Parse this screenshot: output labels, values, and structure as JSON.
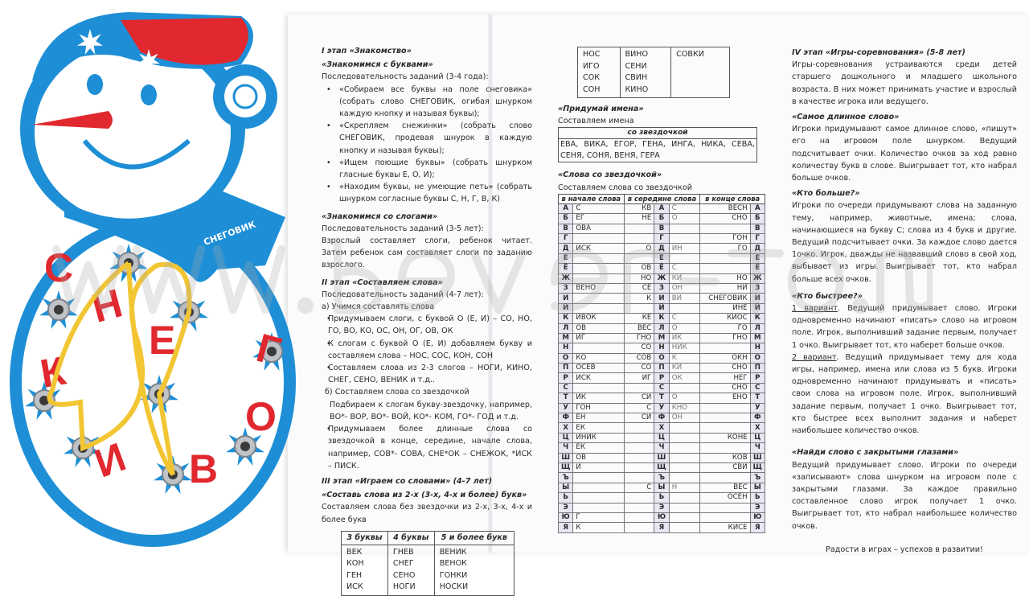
{
  "toy": {
    "scarf_label": "СНЕГОВИК",
    "letters": [
      "С",
      "Н",
      "Е",
      "Г",
      "К",
      "О",
      "И",
      "В"
    ],
    "colors": {
      "blue": "#1e8fd6",
      "red": "#e0282e",
      "lace": "#f2c633"
    }
  },
  "watermark": "www.bever-toy.ru",
  "left": {
    "stage1": "I этап «Знакомство»",
    "letters_title": "«Знакомимся с буквами»",
    "letters_seq": "Последовательность заданий (3-4 года):",
    "letters_items": [
      "«Собираем все буквы на поле снеговика» (собрать слово СНЕГОВИК, огибая шнурком каждую кнопку и называя буквы);",
      "«Скрепляем снежинки» (собрать слово СНЕГОВИК, продевая шнурок в каждую кнопку и называя буквы);",
      "«Ищем поющие буквы» (собрать шнурком гласные буквы Е, О, И);",
      "«Находим буквы, не умеющие петь» (собрать шнурком согласные буквы С, Н, Г, В, К)"
    ],
    "syll_title": "«Знакомимся со слогами»",
    "syll_seq": "Последовательность заданий (3-5 лет):",
    "syll_text": "Взрослый составляет слоги, ребенок читает. Затем ребенок сам составляет слоги по заданию взрослого.",
    "stage2": "II этап «Составляем слова»",
    "stage2_seq": "Последовательность заданий (4-7 лет):",
    "a": "а)  Учимся составлять слова",
    "a_items": [
      "Придумываем слоги, с буквой О (Е, И) – СО, НО, ГО, ВО, КО, ОС, ОН, ОГ, ОВ, ОК",
      "К слогам с буквой О (Е, И)  добавляем букву и составляем слова – НОС, СОС, КОН, СОН",
      "Составляем слова из 2-3 слогов – НОГИ, КИНО, СНЕГ, СЕНО, ВЕНИК и т.д.."
    ],
    "b": "б)  Составляем слова со звездочкой",
    "b_text": "Подбираем к слогам букву-звездочку, например, ВО*- ВОР, ВО*- ВОЙ, КО*- КОМ, ГО*- ГОД и т.д.",
    "b_item": "Придумываем более длинные слова со звездочкой в конце, середине, начале слова, например, СОВ*- СОВА, СНЕ*ОК – СНЕЖОК, *ИСК – ПИСК.",
    "stage3": "III этап «Играем со словами» (4-7 лет)",
    "compose_title": "«Составь слова из 2-х (3-х, 4-х и более) букв»",
    "compose_text": "Составляем слова без звездочки из 2-х, 3-х, 4-х и более букв",
    "words_table": {
      "headers": [
        "3 буквы",
        "4 буквы",
        "5 и более букв"
      ],
      "cols": [
        [
          "ВЕК",
          "КОН",
          "ГЕН",
          "ИСК"
        ],
        [
          "ГНЕВ",
          "СНЕГ",
          "СЕНО",
          "НОГИ"
        ],
        [
          "ВЕНИК",
          "ВЕНОК",
          "ГОНКИ",
          "НОСКИ"
        ]
      ]
    }
  },
  "middle": {
    "words_table_cont": [
      [
        "НОС",
        "ИГО",
        "СОК",
        "СОН"
      ],
      [
        "ВИНО",
        "СЕНИ",
        "СВИН",
        "КИНО"
      ],
      [
        "СОВКИ"
      ]
    ],
    "names_title": "«Придумай имена»",
    "names_text": "Составляем имена",
    "names_header": "со звездочкой",
    "names_list": "ЕВА, ВИКА, ЕГОР, ГЕНА, ИНГА, НИКА, СЕВА, СЕНЯ, СОНЯ, ВЕНЯ, ГЕРА",
    "star_title": "«Слова со звездочкой»",
    "star_text": "Составляем слова со звездочкой",
    "alpha_headers": [
      "в начале слова",
      "в середине слова",
      "в конце слова"
    ],
    "alpha_rows": [
      [
        "А",
        "С",
        "КВ",
        "С",
        "ВЕСН"
      ],
      [
        "Б",
        "ЕГ",
        "НЕ",
        "О",
        "СНО"
      ],
      [
        "В",
        "ОВА",
        "",
        "",
        ""
      ],
      [
        "Г",
        "",
        "",
        "",
        "ГОН"
      ],
      [
        "Д",
        "ИСК",
        "О",
        "ИН",
        "ГО"
      ],
      [
        "Е",
        "",
        "",
        "",
        ""
      ],
      [
        "Ё",
        "",
        "ОВ",
        "С",
        ""
      ],
      [
        "Ж",
        "",
        "НО",
        "КИ",
        "НО"
      ],
      [
        "З",
        "ВЕНО",
        "СЕ",
        "ОН",
        "НИ"
      ],
      [
        "И",
        "",
        "К",
        "ВИ",
        "СНЕГОВИК"
      ],
      [
        "Й",
        "",
        "",
        "",
        "ИНЕ"
      ],
      [
        "К",
        "ИВОК",
        "КЕ",
        "С",
        "КИОС"
      ],
      [
        "Л",
        "ОВ",
        "ВЕС",
        "О",
        "ГО"
      ],
      [
        "М",
        "ИГ",
        "ГНО",
        "ИК",
        "ГНО"
      ],
      [
        "Н",
        "",
        "СО",
        "НИК",
        ""
      ],
      [
        "О",
        "КО",
        "СОВ",
        "К",
        "ОКН"
      ],
      [
        "П",
        "ОСЕВ",
        "СО",
        "КИ",
        "СНО"
      ],
      [
        "Р",
        "ИСК",
        "ИГ",
        "ОК",
        "НЕГ"
      ],
      [
        "С",
        "",
        "",
        "",
        "СНО"
      ],
      [
        "Т",
        "ИК",
        "СИ",
        "О",
        "ЕНО"
      ],
      [
        "У",
        "ГОН",
        "С",
        "КНО",
        ""
      ],
      [
        "Ф",
        "ЕН",
        "СИ",
        "ОН",
        ""
      ],
      [
        "Х",
        "ЕК",
        "",
        "",
        ""
      ],
      [
        "Ц",
        "ИНИК",
        "",
        "",
        "КОНЕ"
      ],
      [
        "Ч",
        "ЕК",
        "",
        "",
        ""
      ],
      [
        "Ш",
        "ОВ",
        "",
        "",
        "КОВ"
      ],
      [
        "Щ",
        "И",
        "",
        "",
        "СВИ"
      ],
      [
        "Ъ",
        "",
        "",
        "",
        ""
      ],
      [
        "Ы",
        "",
        "С",
        "Н",
        "ВЕС"
      ],
      [
        "Ь",
        "",
        "",
        "",
        "ОСЕН"
      ],
      [
        "Э",
        "",
        "",
        "",
        ""
      ],
      [
        "Ю",
        "Г",
        "",
        "",
        ""
      ],
      [
        "Я",
        "К",
        "",
        "",
        "КИСЕ"
      ]
    ]
  },
  "right": {
    "stage4": "IV этап «Игры-соревнования» (5-8 лет)",
    "stage4_text": "Игры-соревнования устраиваются среди детей старшего дошкольного и младшего школьного возраста. В них может принимать участие и взрослый в качестве игрока или ведущего.",
    "long_title": "«Самое длинное слово»",
    "long_text": "Игроки придумывают самое длинное слово, «пишут» его на игровом поле шнурком. Ведущий подсчитывает очки. Количество очков за ход равно количеству букв в слове. Выигрывает тот, кто набрал больше очков.",
    "more_title": "«Кто больше?»",
    "more_text": "Игроки по очереди придумывают слова на заданную тему, например, животные, имена; слова, начинающиеся на букву С; слова из 4 букв  и другие. Ведущий подсчитывает очки. За каждое слово дается 1очко. Игрок, дважды не назвавший слово в свой ход, выбывает из игры. Выигрывает тот, кто набрал больше всех очков.",
    "fast_title": "«Кто быстрее?»",
    "v1_label": "1 вариант",
    "v1_text": ". Ведущий придумывает слово. Игроки одновременно начинают «писать» слово на игровом поле. Игрок, выполнивший задание первым, получает 1 очко. Выигрывает тот, кто наберет больше очков.",
    "v2_label": "2 вариант",
    "v2_text": ". Ведущий придумывает тему для хода игры, например, имена или слова из 5 букв. Игроки одновременно начинают придумывать и «писать» свои слова на игровом поле. Игрок, выполнивший задание первым, получает 1 очко. Выигрывает тот, кто быстрее всех выполнит задания и наберет наибольшее количество очков.",
    "closed_title": "«Найди слово с закрытыми глазами»",
    "closed_text": "Ведущий придумывает слово. Игроки по очереди «записывают» слова шнурком на игровом поле с закрытыми глазами. За каждое правильно составленное слово игрок получает 1 очко. Выигрывает тот, кто набрал наибольшее количество очков.",
    "motto": "Радости в играх – успехов в развитии!"
  }
}
